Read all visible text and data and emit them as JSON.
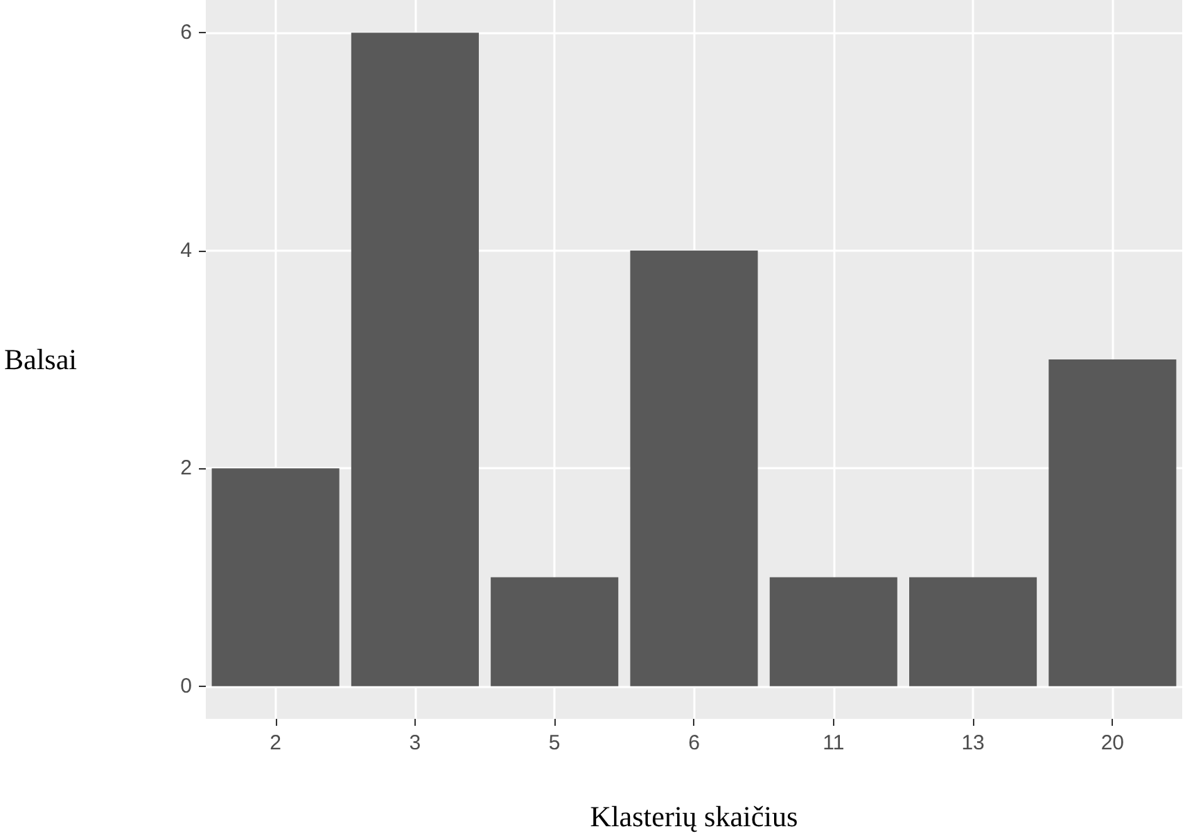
{
  "chart_data": {
    "type": "bar",
    "xlabel": "Klasterių skaičius",
    "ylabel": "Balsai",
    "categories": [
      "2",
      "3",
      "5",
      "6",
      "11",
      "13",
      "20"
    ],
    "values": [
      2,
      6,
      1,
      4,
      1,
      1,
      3
    ],
    "color": "#595959",
    "ylim": [
      -0.3,
      6.3
    ],
    "yticks": [
      0,
      2,
      4,
      6
    ],
    "grid": true
  }
}
